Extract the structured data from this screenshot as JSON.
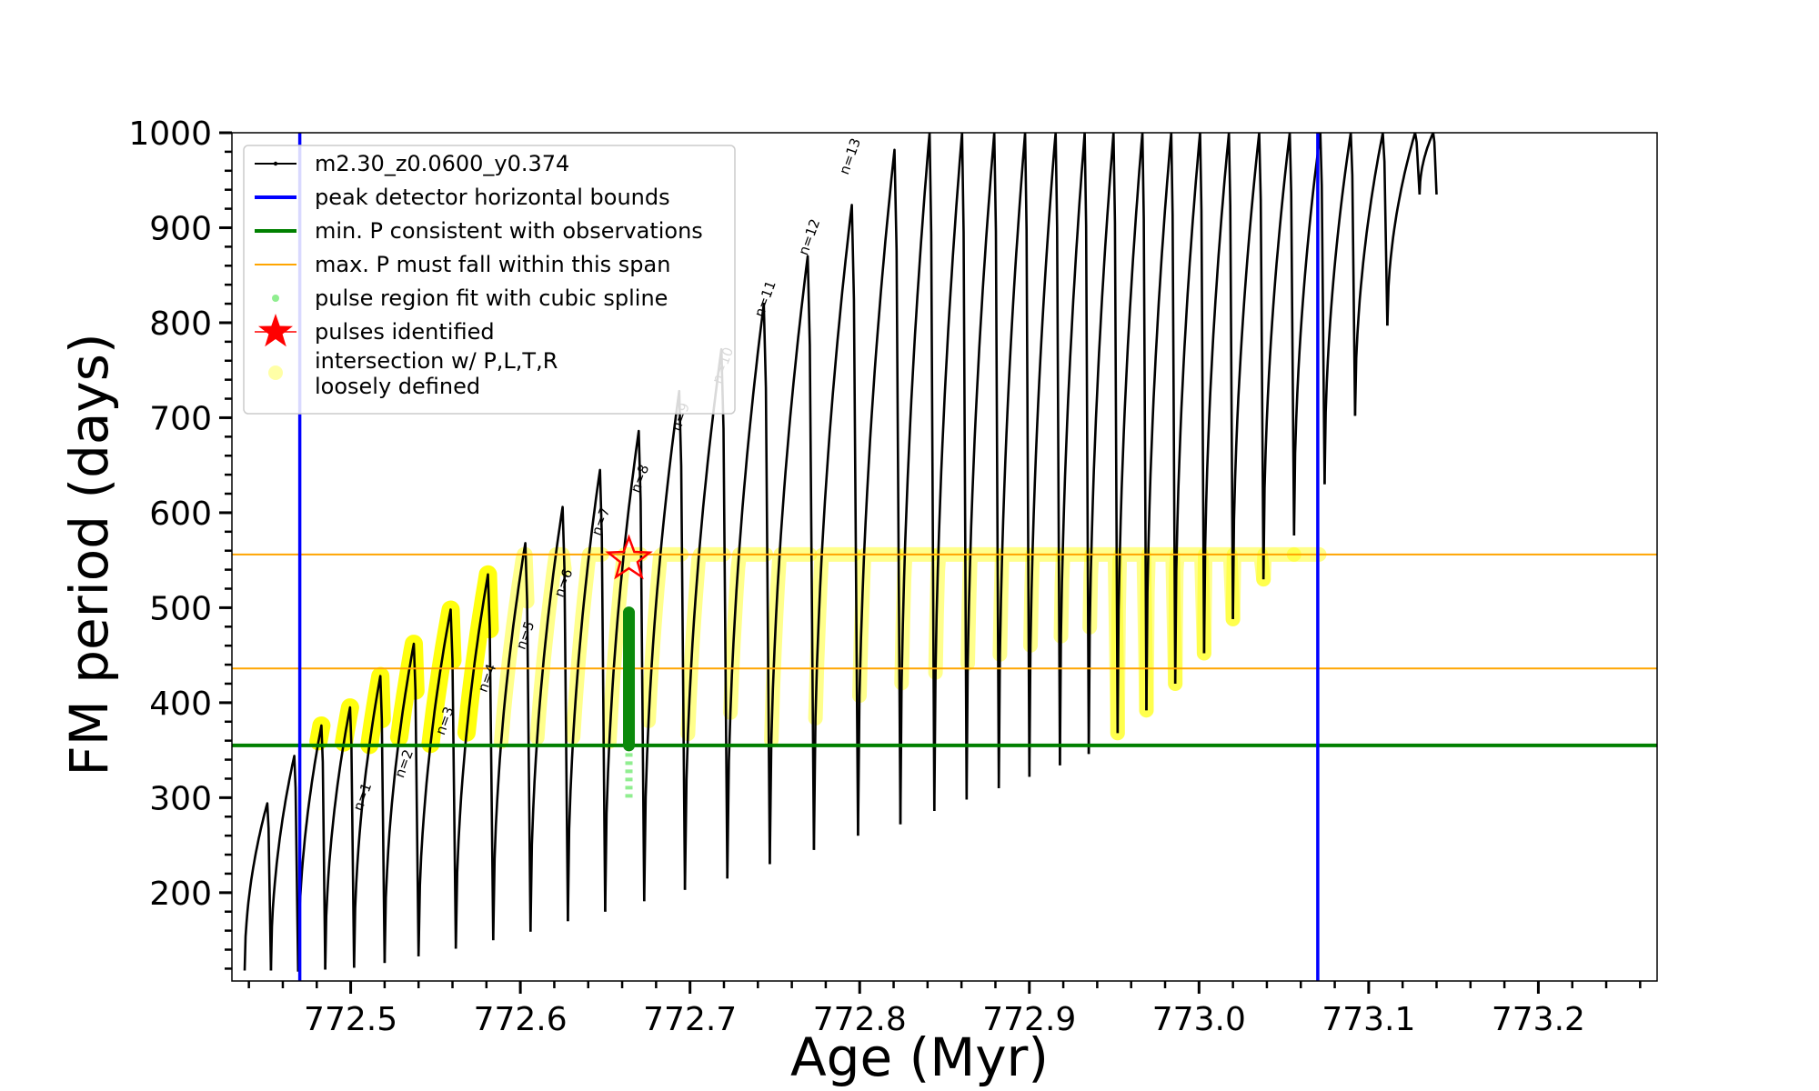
{
  "chart_data": {
    "type": "line",
    "xlabel": "Age (Myr)",
    "ylabel": "FM period (days)",
    "xlim": [
      772.43,
      773.27
    ],
    "ylim": [
      107,
      1000
    ],
    "x_ticks": [
      "772.5",
      "772.6",
      "772.7",
      "772.8",
      "772.9",
      "773.0",
      "773.1",
      "773.2"
    ],
    "y_ticks": [
      "200",
      "300",
      "400",
      "500",
      "600",
      "700",
      "800",
      "900",
      "1000"
    ],
    "x_tick_values": [
      772.5,
      772.6,
      772.7,
      772.8,
      772.9,
      773.0,
      773.1,
      773.2
    ],
    "y_tick_values": [
      200,
      300,
      400,
      500,
      600,
      700,
      800,
      900,
      1000
    ],
    "legend_position": "upper-left",
    "legend": [
      {
        "label": "m2.30_z0.0600_y0.374",
        "color": "#000000",
        "style": "line-marker"
      },
      {
        "label": "peak detector horizontal bounds",
        "color": "#0000ff",
        "style": "line"
      },
      {
        "label": "min. P consistent with observations",
        "color": "#008000",
        "style": "line"
      },
      {
        "label": "max. P must fall within this span",
        "color": "#ffa500",
        "style": "thin-line"
      },
      {
        "label": "pulse region fit with cubic spline",
        "color": "#90ee90",
        "style": "dot"
      },
      {
        "label": "pulses identified",
        "color": "#ff0000",
        "style": "star"
      },
      {
        "label": "intersection w/ P,L,T,R\nloosely defined",
        "color": "#ffff00",
        "style": "big-dot"
      }
    ],
    "vertical_lines": [
      772.47,
      773.07
    ],
    "min_period_line": 355,
    "max_period_span": [
      436,
      556
    ],
    "series": [
      {
        "name": "m2.30_z0.0600_y0.374",
        "pulses": [
          {
            "x": 772.4375,
            "top": 294,
            "bottom": 118,
            "start_x": 772.4375
          },
          {
            "x": 772.453,
            "top": 344,
            "bottom": 118
          },
          {
            "x": 772.469,
            "top": 376,
            "bottom": 117
          },
          {
            "x": 772.485,
            "top": 395,
            "bottom": 119
          },
          {
            "x": 772.502,
            "top": 428,
            "bottom": 121
          },
          {
            "x": 772.52,
            "top": 462,
            "bottom": 126
          },
          {
            "x": 772.54,
            "top": 498,
            "bottom": 133
          },
          {
            "x": 772.562,
            "top": 535,
            "bottom": 141
          },
          {
            "x": 772.584,
            "top": 568,
            "bottom": 150
          },
          {
            "x": 772.606,
            "top": 606,
            "bottom": 159
          },
          {
            "x": 772.628,
            "top": 645,
            "bottom": 170
          },
          {
            "x": 772.65,
            "top": 686,
            "bottom": 180
          },
          {
            "x": 772.673,
            "top": 728,
            "bottom": 191
          },
          {
            "x": 772.697,
            "top": 772,
            "bottom": 203
          },
          {
            "x": 772.722,
            "top": 820,
            "bottom": 215
          },
          {
            "x": 772.747,
            "top": 870,
            "bottom": 230
          },
          {
            "x": 772.773,
            "top": 924,
            "bottom": 245
          },
          {
            "x": 772.799,
            "top": 982,
            "bottom": 260
          },
          {
            "x": 772.824,
            "top": 1000,
            "bottom": 272
          },
          {
            "x": 772.844,
            "top": 1000,
            "bottom": 286
          },
          {
            "x": 772.863,
            "top": 1000,
            "bottom": 298
          },
          {
            "x": 772.882,
            "top": 1000,
            "bottom": 310
          },
          {
            "x": 772.9,
            "top": 1000,
            "bottom": 322
          },
          {
            "x": 772.918,
            "top": 1000,
            "bottom": 334
          },
          {
            "x": 772.935,
            "top": 1000,
            "bottom": 346
          },
          {
            "x": 772.952,
            "top": 1000,
            "bottom": 368
          },
          {
            "x": 772.969,
            "top": 1000,
            "bottom": 392
          },
          {
            "x": 772.986,
            "top": 1000,
            "bottom": 420
          },
          {
            "x": 773.003,
            "top": 1000,
            "bottom": 452
          },
          {
            "x": 773.02,
            "top": 1000,
            "bottom": 488
          },
          {
            "x": 773.038,
            "top": 1000,
            "bottom": 530
          },
          {
            "x": 773.056,
            "top": 1000,
            "bottom": 576
          },
          {
            "x": 773.074,
            "top": 1000,
            "bottom": 630
          },
          {
            "x": 773.092,
            "top": 1000,
            "bottom": 702
          },
          {
            "x": 773.111,
            "top": 1000,
            "bottom": 797
          },
          {
            "x": 773.13,
            "top": 1000,
            "bottom": 935
          }
        ]
      }
    ],
    "spline_fit": {
      "x": 772.664,
      "y_range": [
        300,
        495
      ]
    },
    "pulse_identified": {
      "x": 772.664,
      "y": 551
    },
    "n_labels": [
      {
        "text": "n=1",
        "x": 772.5065,
        "y": 285
      },
      {
        "text": "n=2",
        "x": 772.531,
        "y": 320
      },
      {
        "text": "n=3",
        "x": 772.555,
        "y": 365
      },
      {
        "text": "n=4",
        "x": 772.58,
        "y": 410
      },
      {
        "text": "n=5",
        "x": 772.6025,
        "y": 455
      },
      {
        "text": "n=6",
        "x": 772.625,
        "y": 510
      },
      {
        "text": "n=7",
        "x": 772.647,
        "y": 575
      },
      {
        "text": "n=8",
        "x": 772.67,
        "y": 620
      },
      {
        "text": "n=9",
        "x": 772.694,
        "y": 685
      },
      {
        "text": "n=10",
        "x": 772.718,
        "y": 735
      },
      {
        "text": "n=11",
        "x": 772.743,
        "y": 805
      },
      {
        "text": "n=12",
        "x": 772.769,
        "y": 870
      },
      {
        "text": "n=13",
        "x": 772.793,
        "y": 955
      }
    ]
  }
}
